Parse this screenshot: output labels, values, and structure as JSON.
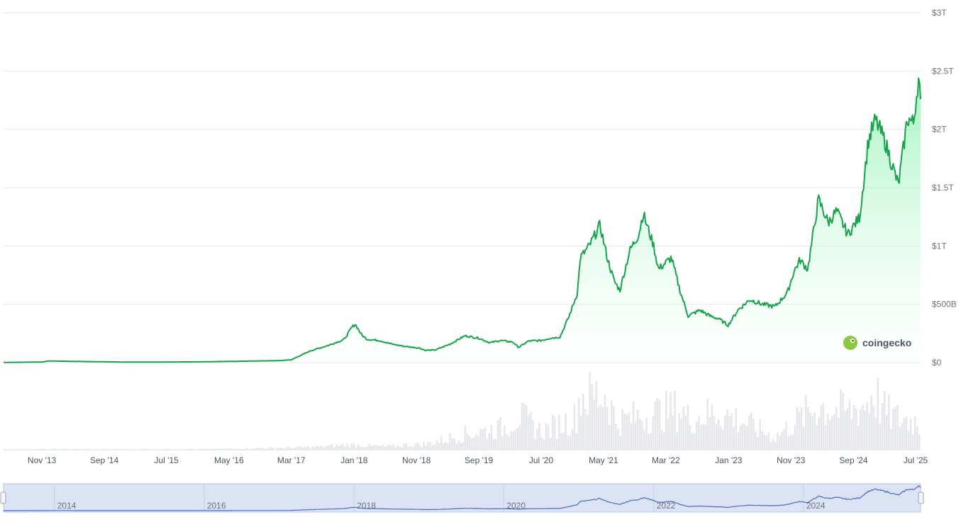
{
  "chart_data": {
    "type": "area",
    "title": "",
    "xlabel": "",
    "ylabel": "",
    "ylim": [
      0,
      3000000000000
    ],
    "grid": true,
    "y_ticks": [
      {
        "value": 0,
        "label": "$0"
      },
      {
        "value": 500000000000,
        "label": "$500B"
      },
      {
        "value": 1000000000000,
        "label": "$1T"
      },
      {
        "value": 1500000000000,
        "label": "$1.5T"
      },
      {
        "value": 2000000000000,
        "label": "$2T"
      },
      {
        "value": 2500000000000,
        "label": "$2.5T"
      },
      {
        "value": 3000000000000,
        "label": "$3T"
      }
    ],
    "x_range": [
      "2013-04-28",
      "2025-07-25"
    ],
    "x_ticks": [
      {
        "date": "2013-11-01",
        "label": "Nov '13"
      },
      {
        "date": "2014-09-01",
        "label": "Sep '14"
      },
      {
        "date": "2015-07-01",
        "label": "Jul '15"
      },
      {
        "date": "2016-05-01",
        "label": "May '16"
      },
      {
        "date": "2017-03-01",
        "label": "Mar '17"
      },
      {
        "date": "2018-01-01",
        "label": "Jan '18"
      },
      {
        "date": "2018-11-01",
        "label": "Nov '18"
      },
      {
        "date": "2019-09-01",
        "label": "Sep '19"
      },
      {
        "date": "2020-07-01",
        "label": "Jul '20"
      },
      {
        "date": "2021-05-01",
        "label": "May '21"
      },
      {
        "date": "2022-03-01",
        "label": "Mar '22"
      },
      {
        "date": "2023-01-01",
        "label": "Jan '23"
      },
      {
        "date": "2023-11-01",
        "label": "Nov '23"
      },
      {
        "date": "2024-09-01",
        "label": "Sep '24"
      },
      {
        "date": "2025-07-01",
        "label": "Jul '25"
      }
    ],
    "navigator_ticks": [
      {
        "date": "2014-01-01",
        "label": "2014"
      },
      {
        "date": "2016-01-01",
        "label": "2016"
      },
      {
        "date": "2018-01-01",
        "label": "2018"
      },
      {
        "date": "2020-01-01",
        "label": "2020"
      },
      {
        "date": "2022-01-01",
        "label": "2022"
      },
      {
        "date": "2024-01-01",
        "label": "2024"
      }
    ],
    "series": [
      {
        "color": "#16a34a",
        "points": [
          [
            "2013-04-28",
            1500000000
          ],
          [
            "2013-11-01",
            5000000000
          ],
          [
            "2013-12-05",
            14000000000
          ],
          [
            "2014-06-01",
            9000000000
          ],
          [
            "2015-01-15",
            4000000000
          ],
          [
            "2015-07-01",
            5000000000
          ],
          [
            "2016-01-01",
            7000000000
          ],
          [
            "2016-07-01",
            12000000000
          ],
          [
            "2017-01-01",
            17000000000
          ],
          [
            "2017-03-01",
            24000000000
          ],
          [
            "2017-06-01",
            100000000000
          ],
          [
            "2017-09-01",
            150000000000
          ],
          [
            "2017-11-15",
            200000000000
          ],
          [
            "2017-12-20",
            300000000000
          ],
          [
            "2018-01-07",
            330000000000
          ],
          [
            "2018-02-06",
            240000000000
          ],
          [
            "2018-03-05",
            200000000000
          ],
          [
            "2018-05-05",
            190000000000
          ],
          [
            "2018-07-01",
            160000000000
          ],
          [
            "2018-09-01",
            140000000000
          ],
          [
            "2018-11-15",
            125000000000
          ],
          [
            "2018-12-15",
            105000000000
          ],
          [
            "2019-02-01",
            108000000000
          ],
          [
            "2019-04-15",
            160000000000
          ],
          [
            "2019-06-26",
            230000000000
          ],
          [
            "2019-09-01",
            210000000000
          ],
          [
            "2019-10-26",
            170000000000
          ],
          [
            "2019-12-15",
            190000000000
          ],
          [
            "2020-02-15",
            175000000000
          ],
          [
            "2020-03-13",
            130000000000
          ],
          [
            "2020-05-01",
            185000000000
          ],
          [
            "2020-07-01",
            190000000000
          ],
          [
            "2020-08-15",
            210000000000
          ],
          [
            "2020-10-01",
            220000000000
          ],
          [
            "2020-11-15",
            400000000000
          ],
          [
            "2020-12-25",
            600000000000
          ],
          [
            "2021-01-08",
            900000000000
          ],
          [
            "2021-02-21",
            1000000000000
          ],
          [
            "2021-04-14",
            1180000000000
          ],
          [
            "2021-05-19",
            900000000000
          ],
          [
            "2021-06-22",
            700000000000
          ],
          [
            "2021-07-20",
            620000000000
          ],
          [
            "2021-09-06",
            960000000000
          ],
          [
            "2021-10-20",
            1100000000000
          ],
          [
            "2021-11-10",
            1280000000000
          ],
          [
            "2022-01-01",
            1000000000000
          ],
          [
            "2022-01-24",
            800000000000
          ],
          [
            "2022-03-28",
            900000000000
          ],
          [
            "2022-05-12",
            600000000000
          ],
          [
            "2022-06-18",
            400000000000
          ],
          [
            "2022-08-15",
            450000000000
          ],
          [
            "2022-10-01",
            400000000000
          ],
          [
            "2022-11-09",
            380000000000
          ],
          [
            "2022-12-30",
            320000000000
          ],
          [
            "2023-02-15",
            450000000000
          ],
          [
            "2023-04-15",
            540000000000
          ],
          [
            "2023-06-15",
            500000000000
          ],
          [
            "2023-08-15",
            480000000000
          ],
          [
            "2023-10-15",
            600000000000
          ],
          [
            "2023-11-15",
            780000000000
          ],
          [
            "2023-12-15",
            880000000000
          ],
          [
            "2024-01-22",
            800000000000
          ],
          [
            "2024-03-14",
            1400000000000
          ],
          [
            "2024-05-01",
            1200000000000
          ],
          [
            "2024-06-10",
            1300000000000
          ],
          [
            "2024-08-05",
            1100000000000
          ],
          [
            "2024-10-01",
            1250000000000
          ],
          [
            "2024-11-12",
            1900000000000
          ],
          [
            "2024-12-17",
            2080000000000
          ],
          [
            "2025-02-01",
            1900000000000
          ],
          [
            "2025-04-08",
            1520000000000
          ],
          [
            "2025-05-22",
            2100000000000
          ],
          [
            "2025-06-20",
            2050000000000
          ],
          [
            "2025-07-14",
            2440000000000
          ],
          [
            "2025-07-25",
            2260000000000
          ]
        ]
      }
    ],
    "volume_series": {
      "color": "#e5e7eb",
      "points": [
        [
          "2013-04-28",
          0.01
        ],
        [
          "2016-01-01",
          0.01
        ],
        [
          "2017-06-01",
          0.04
        ],
        [
          "2017-12-20",
          0.08
        ],
        [
          "2018-06-01",
          0.05
        ],
        [
          "2019-01-01",
          0.1
        ],
        [
          "2019-06-26",
          0.25
        ],
        [
          "2020-01-01",
          0.35
        ],
        [
          "2020-03-13",
          0.55
        ],
        [
          "2020-07-01",
          0.3
        ],
        [
          "2020-12-15",
          0.5
        ],
        [
          "2021-01-11",
          0.92
        ],
        [
          "2021-02-23",
          0.85
        ],
        [
          "2021-05-19",
          0.9
        ],
        [
          "2021-07-01",
          0.45
        ],
        [
          "2021-11-10",
          0.55
        ],
        [
          "2022-05-12",
          0.65
        ],
        [
          "2022-06-18",
          0.5
        ],
        [
          "2022-11-09",
          0.6
        ],
        [
          "2023-03-15",
          0.45
        ],
        [
          "2023-08-15",
          0.2
        ],
        [
          "2023-12-15",
          0.5
        ],
        [
          "2024-03-14",
          0.7
        ],
        [
          "2024-08-05",
          0.6
        ],
        [
          "2024-11-12",
          0.75
        ],
        [
          "2024-12-05",
          0.95
        ],
        [
          "2025-02-03",
          0.6
        ],
        [
          "2025-04-08",
          0.5
        ],
        [
          "2025-07-14",
          0.45
        ],
        [
          "2025-07-25",
          0.35
        ]
      ]
    }
  },
  "brand": {
    "name": "coingecko",
    "color": "#8dc63f"
  },
  "colors": {
    "line": "#16a34a",
    "area_top": "#bbf7d0",
    "navigator": "#dbe3f5",
    "navigator_line": "#4a6cc4",
    "grid": "#e5e7eb"
  }
}
